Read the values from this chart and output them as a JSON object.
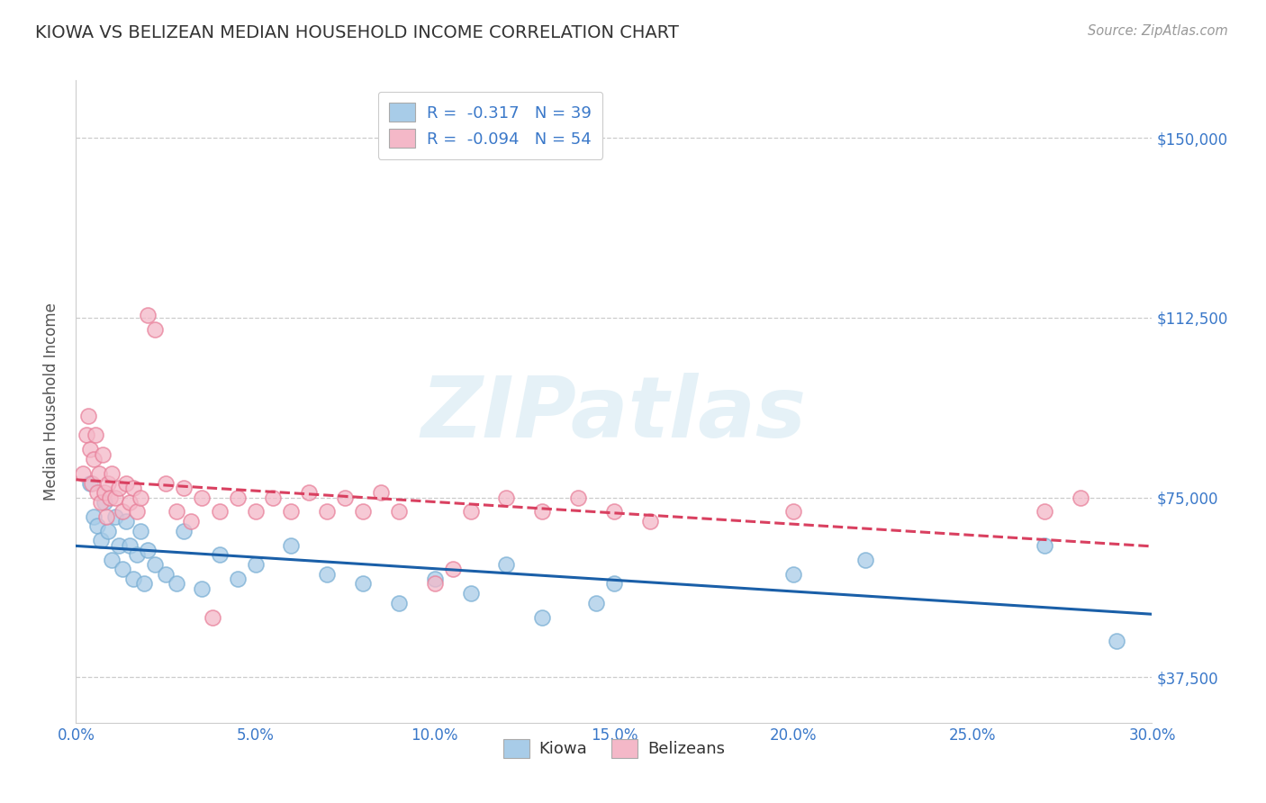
{
  "title": "KIOWA VS BELIZEAN MEDIAN HOUSEHOLD INCOME CORRELATION CHART",
  "source": "Source: ZipAtlas.com",
  "ylabel": "Median Household Income",
  "xlim": [
    0.0,
    30.0
  ],
  "ylim": [
    28000,
    162000
  ],
  "yticks": [
    37500,
    75000,
    112500,
    150000
  ],
  "ytick_labels": [
    "$37,500",
    "$75,000",
    "$112,500",
    "$150,000"
  ],
  "xticks": [
    0.0,
    5.0,
    10.0,
    15.0,
    20.0,
    25.0,
    30.0
  ],
  "xtick_labels": [
    "0.0%",
    "5.0%",
    "10.0%",
    "15.0%",
    "20.0%",
    "25.0%",
    "30.0%"
  ],
  "kiowa_color": "#a8cce8",
  "kiowa_edge_color": "#7aafd4",
  "belizean_color": "#f4b8c8",
  "belizean_edge_color": "#e8809a",
  "kiowa_line_color": "#1a5fa8",
  "belizean_line_color": "#d94060",
  "kiowa_R": -0.317,
  "kiowa_N": 39,
  "belizean_R": -0.094,
  "belizean_N": 54,
  "watermark": "ZIPatlas",
  "background_color": "#ffffff",
  "grid_color": "#cccccc",
  "title_color": "#333333",
  "axis_label_color": "#555555",
  "tick_value_color": "#3a78c9",
  "legend_text_color": "#3a78c9",
  "kiowa_scatter": [
    [
      0.4,
      78000
    ],
    [
      0.5,
      71000
    ],
    [
      0.6,
      69000
    ],
    [
      0.7,
      66000
    ],
    [
      0.8,
      74000
    ],
    [
      0.9,
      68000
    ],
    [
      1.0,
      62000
    ],
    [
      1.1,
      71000
    ],
    [
      1.2,
      65000
    ],
    [
      1.3,
      60000
    ],
    [
      1.4,
      70000
    ],
    [
      1.5,
      65000
    ],
    [
      1.6,
      58000
    ],
    [
      1.7,
      63000
    ],
    [
      1.8,
      68000
    ],
    [
      1.9,
      57000
    ],
    [
      2.0,
      64000
    ],
    [
      2.2,
      61000
    ],
    [
      2.5,
      59000
    ],
    [
      2.8,
      57000
    ],
    [
      3.0,
      68000
    ],
    [
      3.5,
      56000
    ],
    [
      4.0,
      63000
    ],
    [
      4.5,
      58000
    ],
    [
      5.0,
      61000
    ],
    [
      6.0,
      65000
    ],
    [
      7.0,
      59000
    ],
    [
      8.0,
      57000
    ],
    [
      9.0,
      53000
    ],
    [
      10.0,
      58000
    ],
    [
      11.0,
      55000
    ],
    [
      12.0,
      61000
    ],
    [
      13.0,
      50000
    ],
    [
      14.5,
      53000
    ],
    [
      15.0,
      57000
    ],
    [
      20.0,
      59000
    ],
    [
      22.0,
      62000
    ],
    [
      27.0,
      65000
    ],
    [
      29.0,
      45000
    ]
  ],
  "belizean_scatter": [
    [
      0.2,
      80000
    ],
    [
      0.3,
      88000
    ],
    [
      0.35,
      92000
    ],
    [
      0.4,
      85000
    ],
    [
      0.45,
      78000
    ],
    [
      0.5,
      83000
    ],
    [
      0.55,
      88000
    ],
    [
      0.6,
      76000
    ],
    [
      0.65,
      80000
    ],
    [
      0.7,
      74000
    ],
    [
      0.75,
      84000
    ],
    [
      0.8,
      76000
    ],
    [
      0.85,
      71000
    ],
    [
      0.9,
      78000
    ],
    [
      0.95,
      75000
    ],
    [
      1.0,
      80000
    ],
    [
      1.1,
      75000
    ],
    [
      1.2,
      77000
    ],
    [
      1.3,
      72000
    ],
    [
      1.4,
      78000
    ],
    [
      1.5,
      74000
    ],
    [
      1.6,
      77000
    ],
    [
      1.7,
      72000
    ],
    [
      1.8,
      75000
    ],
    [
      2.0,
      113000
    ],
    [
      2.2,
      110000
    ],
    [
      2.5,
      78000
    ],
    [
      2.8,
      72000
    ],
    [
      3.0,
      77000
    ],
    [
      3.2,
      70000
    ],
    [
      3.5,
      75000
    ],
    [
      3.8,
      50000
    ],
    [
      4.0,
      72000
    ],
    [
      4.5,
      75000
    ],
    [
      5.0,
      72000
    ],
    [
      5.5,
      75000
    ],
    [
      6.0,
      72000
    ],
    [
      6.5,
      76000
    ],
    [
      7.0,
      72000
    ],
    [
      7.5,
      75000
    ],
    [
      8.0,
      72000
    ],
    [
      8.5,
      76000
    ],
    [
      9.0,
      72000
    ],
    [
      10.0,
      57000
    ],
    [
      10.5,
      60000
    ],
    [
      11.0,
      72000
    ],
    [
      12.0,
      75000
    ],
    [
      13.0,
      72000
    ],
    [
      14.0,
      75000
    ],
    [
      15.0,
      72000
    ],
    [
      16.0,
      70000
    ],
    [
      20.0,
      72000
    ],
    [
      27.0,
      72000
    ],
    [
      28.0,
      75000
    ]
  ]
}
